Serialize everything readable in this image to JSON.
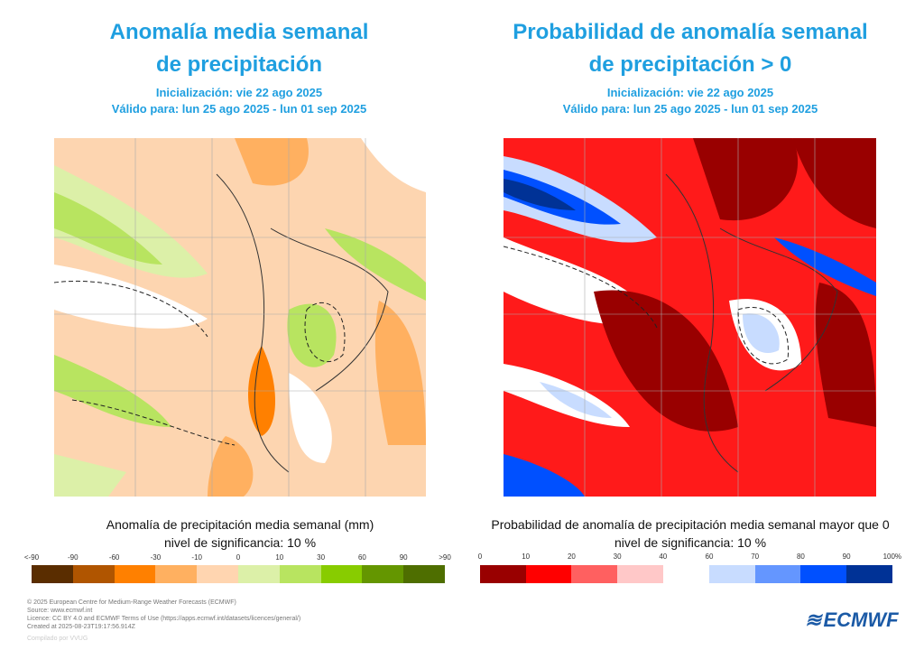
{
  "left": {
    "title_line1": "Anomalía media semanal",
    "title_line2": "de precipitación",
    "init": "Inicialización: vie 22 ago 2025",
    "valid": "Válido para: lun 25 ago 2025 - lun 01 sep 2025",
    "caption": "Anomalía de precipitación media semanal (mm)",
    "significance": "nivel de significancia: 10 %",
    "legend": {
      "ticks": [
        "<-90",
        "-90",
        "-60",
        "-30",
        "-10",
        "0",
        "10",
        "30",
        "60",
        "90",
        ">90"
      ],
      "colors": [
        "#5a2d00",
        "#b05500",
        "#ff8000",
        "#ffb060",
        "#ffd5b0",
        "#dcf0a8",
        "#b8e460",
        "#88cc00",
        "#649600",
        "#4e6e00"
      ]
    }
  },
  "right": {
    "title_line1": "Probabilidad de anomalía semanal",
    "title_line2": "de precipitación > 0",
    "init": "Inicialización: vie 22 ago 2025",
    "valid": "Válido para: lun 25 ago 2025 - lun 01 sep 2025",
    "caption": "Probabilidad de anomalía de precipitación media semanal mayor que 0",
    "significance": "nivel de significancia: 10 %",
    "legend": {
      "ticks": [
        "0",
        "10",
        "20",
        "30",
        "40",
        "60",
        "70",
        "80",
        "90",
        "100%"
      ],
      "colors": [
        "#990000",
        "#ff0000",
        "#ff6060",
        "#ffc8c8",
        "#c8dcff",
        "#6496ff",
        "#0050ff",
        "#003296"
      ]
    }
  },
  "footer": {
    "lines": [
      "© 2025 European Centre for Medium-Range Weather Forecasts (ECMWF)",
      "Source: www.ecmwf.int",
      "Licence: CC BY 4.0 and ECMWF Terms of Use (https://apps.ecmwf.int/datasets/licences/general/)",
      "Created at 2025-08-23T19:17:56.914Z"
    ],
    "compiled": "Compilado por VVUG"
  },
  "logo": "ECMWF"
}
